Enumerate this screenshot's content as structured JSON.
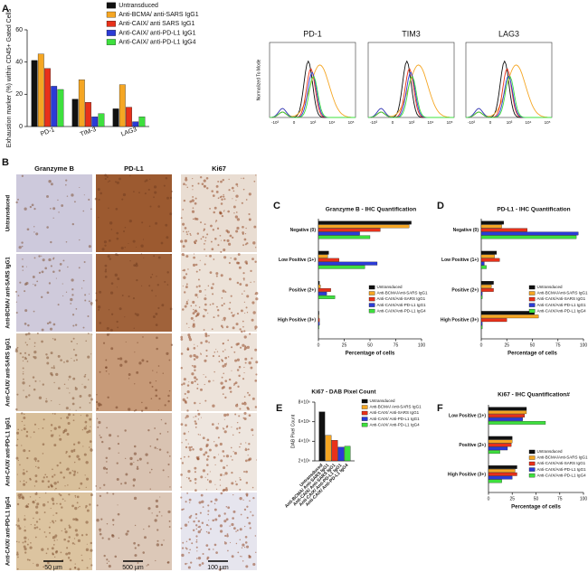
{
  "chart_data": [
    {
      "type": "bar",
      "panel": "A",
      "ylabel": "Exhaustion marker (%) within CD45+ Gated Cells",
      "categories": [
        "PD-1",
        "TIM-3",
        "LAG3"
      ],
      "series": [
        {
          "name": "Untransduced",
          "color": "#111111",
          "values": [
            41,
            17,
            11
          ]
        },
        {
          "name": "Anti-BCMA/ anti-SARS IgG1",
          "color": "#f5a623",
          "values": [
            45,
            29,
            26
          ]
        },
        {
          "name": "Anti-CAIX/ anti SARS IgG1",
          "color": "#e8311a",
          "values": [
            36,
            15,
            12
          ]
        },
        {
          "name": "Anti-CAIX/ anti-PD-L1 IgG1",
          "color": "#2b3bd6",
          "values": [
            25,
            6,
            3
          ]
        },
        {
          "name": "Anti-CAIX/ anti-PD-L1 IgG4",
          "color": "#3ee03e",
          "values": [
            23,
            8,
            6
          ]
        }
      ],
      "ylim": [
        0,
        60
      ],
      "yticks": [
        0,
        20,
        40,
        60
      ],
      "legend": "upper-right"
    },
    {
      "type": "barh",
      "panel": "C",
      "title": "Granzyme B - IHC Quantification",
      "xlabel": "Percentage of cells",
      "categories": [
        "Negative (0)",
        "Low Positive (1+)",
        "Positive (2+)",
        "High Positive (3+)"
      ],
      "series": [
        {
          "name": "Untransduced",
          "color": "#111111",
          "values": [
            90,
            10,
            1,
            0.5
          ]
        },
        {
          "name": "Anti-BCMA/Anti-SARS IgG1",
          "color": "#f5a623",
          "values": [
            88,
            9,
            2,
            0.5
          ]
        },
        {
          "name": "Anti-CAIX/Anti-SARS IgG1",
          "color": "#e8311a",
          "values": [
            60,
            20,
            12,
            1
          ]
        },
        {
          "name": "Anti-CAIX/Anti-PD-L1 IgG1",
          "color": "#2b3bd6",
          "values": [
            40,
            57,
            8,
            1
          ]
        },
        {
          "name": "Anti-CAIX/Anti-PD-L1 IgG4",
          "color": "#3ee03e",
          "values": [
            50,
            45,
            16,
            0.5
          ]
        }
      ],
      "xlim": [
        0,
        100
      ],
      "xticks": [
        0,
        25,
        50,
        75,
        100
      ],
      "legend": "lower-right"
    },
    {
      "type": "barh",
      "panel": "D",
      "title": "PD-L1 - IHC Quantification",
      "xlabel": "Percentage of cells",
      "categories": [
        "Negative (0)",
        "Low Positive (1+)",
        "Positive (2+)",
        "High Positive (3+)"
      ],
      "series": [
        {
          "name": "Untransduced",
          "color": "#111111",
          "values": [
            22,
            15,
            12,
            52
          ]
        },
        {
          "name": "Anti-BCMA/Anti-SARS IgG1",
          "color": "#f5a623",
          "values": [
            20,
            13,
            10,
            56
          ]
        },
        {
          "name": "Anti-CAIX/Anti-SARS IgG1",
          "color": "#e8311a",
          "values": [
            45,
            18,
            12,
            25
          ]
        },
        {
          "name": "Anti-CAIX/Anti-PD-L1 IgG1",
          "color": "#2b3bd6",
          "values": [
            95,
            3,
            1,
            1
          ]
        },
        {
          "name": "Anti-CAIX/Anti-PD-L1 IgG4",
          "color": "#3ee03e",
          "values": [
            93,
            5,
            1,
            1
          ]
        }
      ],
      "xlim": [
        0,
        100
      ],
      "xticks": [
        0,
        25,
        50,
        75,
        100
      ],
      "legend": "lower-right"
    },
    {
      "type": "bar",
      "panel": "E",
      "title": "Ki67 - DAB Pixel Count",
      "ylabel": "DAB Pixel Count",
      "categories": [
        null
      ],
      "series": [
        {
          "name": "Untransduced",
          "color": "#111111",
          "values": [
            7000000
          ]
        },
        {
          "name": "Anti-BCMA/ Anti-SARS IgG1",
          "color": "#f5a623",
          "values": [
            4600000
          ]
        },
        {
          "name": "Anti-CAIX/ Anti-SARS IgG1",
          "color": "#e8311a",
          "values": [
            4100000
          ]
        },
        {
          "name": "Anti-CAIX/ Anti-PD-L1 IgG1",
          "color": "#2b3bd6",
          "values": [
            3400000
          ]
        },
        {
          "name": "Anti-CAIX/ Anti-PD-L1 IgG4",
          "color": "#3ee03e",
          "values": [
            3500000
          ]
        }
      ],
      "ylim": [
        2000000,
        8000000
      ],
      "yticks": [
        {
          "value": 2000000,
          "label": "2×10⁶"
        },
        {
          "value": 4000000,
          "label": "4×10⁶"
        },
        {
          "value": 6000000,
          "label": "6×10⁶"
        },
        {
          "value": 8000000,
          "label": "8×10⁶"
        }
      ],
      "legend": "right"
    },
    {
      "type": "barh",
      "panel": "F",
      "title": "Ki67 - IHC Quantification#",
      "xlabel": "Percentage of cells",
      "categories": [
        "Low Positive (1+)",
        "Positive (2+)",
        "High Positive (3+)"
      ],
      "series": [
        {
          "name": "Untransduced",
          "color": "#111111",
          "values": [
            40,
            25,
            30
          ]
        },
        {
          "name": "Anti-BCMA/Anti-SARS IgG1",
          "color": "#f5a623",
          "values": [
            40,
            25,
            28
          ]
        },
        {
          "name": "Anti-CAIX/Anti-SARS IgG1",
          "color": "#e8311a",
          "values": [
            38,
            24,
            30
          ]
        },
        {
          "name": "Anti-CAIX/Anti-PD-L1 IgG1",
          "color": "#2b3bd6",
          "values": [
            36,
            20,
            25
          ]
        },
        {
          "name": "Anti-CAIX/Anti-PD-L1 IgG4",
          "color": "#3ee03e",
          "values": [
            60,
            12,
            14
          ]
        }
      ],
      "xlim": [
        0,
        100
      ],
      "xticks": [
        0,
        25,
        50,
        75,
        100
      ],
      "legend": "lower-right"
    }
  ],
  "flow_cytometry": {
    "panels": [
      "PD-1",
      "TIM3",
      "LAG3"
    ],
    "ylabel": "Normalized To Mode",
    "xtick_labels": [
      "-10³",
      "0",
      "10³",
      "10⁴",
      "10⁵"
    ]
  },
  "ihc": {
    "panel": "B",
    "columns": [
      "Granzyme B",
      "PD-L1",
      "Ki67"
    ],
    "rows": [
      "Untransduced",
      "Anti-BCMA/ anti-SARS IgG1",
      "Anti-CAIX/ anti-SARS IgG1",
      "Anti-CAIX/ anti-PD-L1 IgG1",
      "Anti-CAIX/ anti-PD-L1 IgG4"
    ],
    "scale_bars": [
      "50 µm",
      "500 µm",
      "100 µm"
    ]
  }
}
